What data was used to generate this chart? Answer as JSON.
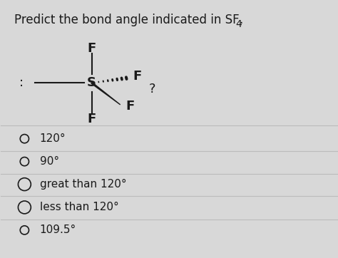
{
  "title_main": "Predict the bond angle indicated in SF",
  "title_sub": "4",
  "bg_color": "#d8d8d8",
  "text_color": "#1a1a1a",
  "options": [
    {
      "label": "120°"
    },
    {
      "label": "90°"
    },
    {
      "label": "great than 120°"
    },
    {
      "label": "less than 120°"
    },
    {
      "label": "109.5°"
    }
  ],
  "divider_color": "#bbbbbb",
  "font_size_title": 12,
  "font_size_options": 11,
  "sx": 0.27,
  "sy": 0.68
}
